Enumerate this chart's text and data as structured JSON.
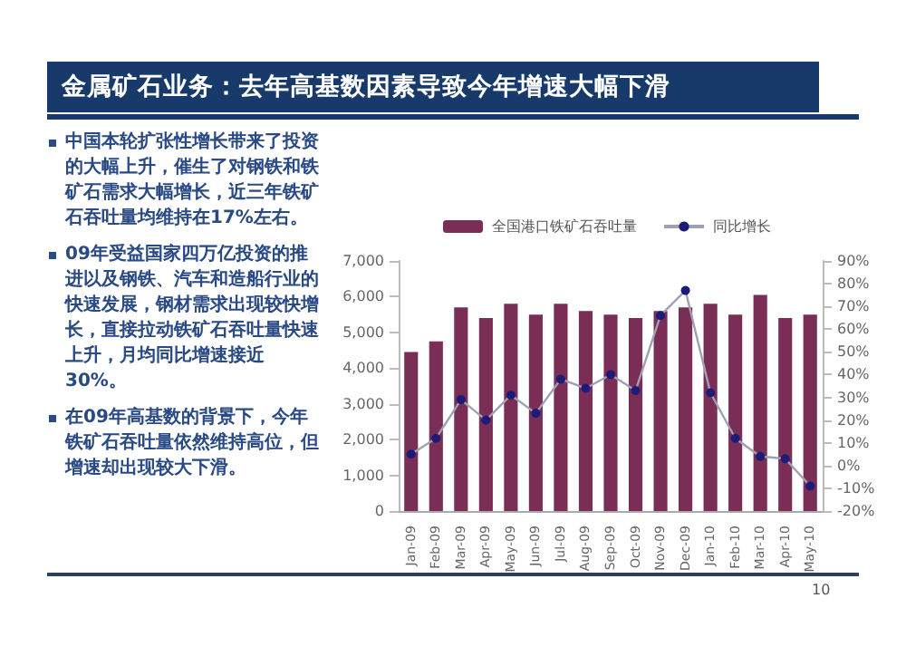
{
  "chart_data": {
    "type": "bar",
    "title": "金属矿石业务：去年高基数因素导致今年增速大幅下滑",
    "annotations": [
      "中国本轮扩张性增长带来了投资的大幅上升，催生了对钢铁和铁矿石需求大幅增长，近三年铁矿石吞吐量均维持在17%左右。",
      "09年受益国家四万亿投资的推进以及钢铁、汽车和造船行业的快速发展，钢材需求出现较快增长，直接拉动铁矿石吞吐量快速上升，月均同比增速接近30%。",
      "在09年高基数的背景下，今年铁矿石吞吐量依然维持高位，但增速却出现较大下滑。",
      "10"
    ],
    "categories": [
      "Jan-09",
      "Feb-09",
      "Mar-09",
      "Apr-09",
      "May-09",
      "Jun-09",
      "Jul-09",
      "Aug-09",
      "Sep-09",
      "Oct-09",
      "Nov-09",
      "Dec-09",
      "Jan-10",
      "Feb-10",
      "Mar-10",
      "Apr-10",
      "May-10"
    ],
    "series": [
      {
        "name": "全国港口铁矿石吞吐量",
        "color": "#7a2d55",
        "values": [
          4450,
          4750,
          5700,
          5400,
          5800,
          5500,
          5800,
          5600,
          5500,
          5400,
          5600,
          5700,
          5800,
          5500,
          6050,
          5400,
          5500
        ]
      },
      {
        "name": "同比增长",
        "type": "line",
        "axis": "y2",
        "color": "#1c1c78",
        "values": [
          5,
          12,
          29,
          20,
          31,
          23,
          38,
          34,
          40,
          33,
          66,
          77,
          32,
          12,
          4,
          3,
          -9
        ]
      }
    ],
    "ylim": [
      0,
      7000
    ],
    "yticks": [
      0,
      {
        "value": 1000,
        "label": "1,000"
      },
      {
        "value": 2000,
        "label": "2,000"
      },
      {
        "value": 3000,
        "label": "3,000"
      },
      {
        "value": 4000,
        "label": "4,000"
      },
      {
        "value": 5000,
        "label": "5,000"
      },
      {
        "value": 6000,
        "label": "6,000"
      },
      {
        "value": 7000,
        "label": "7,000"
      }
    ],
    "y2lim": [
      -20,
      90
    ],
    "y2ticks": [
      {
        "value": -20,
        "label": "-20%"
      },
      {
        "value": -10,
        "label": "-10%"
      },
      {
        "value": 0,
        "label": "0%"
      },
      {
        "value": 10,
        "label": "10%"
      },
      {
        "value": 20,
        "label": "20%"
      },
      {
        "value": 30,
        "label": "30%"
      },
      {
        "value": 40,
        "label": "40%"
      },
      {
        "value": 50,
        "label": "50%"
      },
      {
        "value": 60,
        "label": "60%"
      },
      {
        "value": 70,
        "label": "70%"
      },
      {
        "value": 80,
        "label": "80%"
      },
      {
        "value": 90,
        "label": "90%"
      }
    ],
    "legend": "top",
    "grid": false,
    "marker": "circle"
  }
}
